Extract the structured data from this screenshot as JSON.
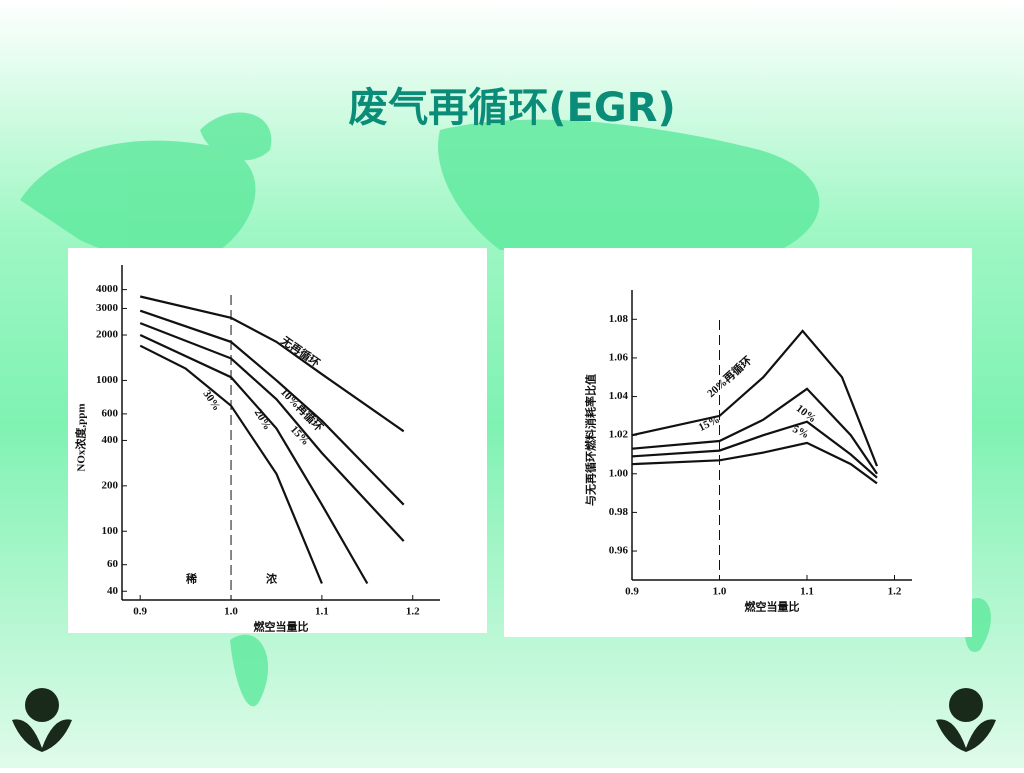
{
  "title": "废气再循环(EGR)",
  "chart_data": [
    {
      "type": "line",
      "log_y": true,
      "ylabel": "NOx浓度,ppm",
      "xlabel": "燃空当量比",
      "xlim": [
        0.88,
        1.23
      ],
      "ylim": [
        35,
        5000
      ],
      "xticks": [
        0.9,
        {
          "value": 1,
          "label": "1.0"
        },
        1.1,
        1.2
      ],
      "yticks": [
        40,
        60,
        100,
        200,
        400,
        600,
        1000,
        2000,
        3000,
        4000
      ],
      "vline": 1,
      "annotations": [
        "稀",
        "浓"
      ],
      "series": [
        {
          "name": "无再循环",
          "color": "#111111",
          "x": [
            0.9,
            1.0,
            1.05,
            1.1,
            1.19
          ],
          "values": [
            3600,
            2600,
            1800,
            1100,
            460
          ]
        },
        {
          "name": "10%再循环",
          "color": "#111111",
          "x": [
            0.9,
            1.0,
            1.05,
            1.1,
            1.19
          ],
          "values": [
            2900,
            1800,
            1000,
            540,
            150
          ]
        },
        {
          "name": "15%",
          "color": "#111111",
          "x": [
            0.9,
            1.0,
            1.05,
            1.1,
            1.19
          ],
          "values": [
            2400,
            1400,
            750,
            330,
            86
          ]
        },
        {
          "name": "20%",
          "color": "#111111",
          "x": [
            0.9,
            1.0,
            1.05,
            1.1,
            1.15
          ],
          "values": [
            2000,
            1050,
            480,
            150,
            45
          ]
        },
        {
          "name": "30%",
          "color": "#111111",
          "x": [
            0.9,
            0.95,
            1.0,
            1.05,
            1.1
          ],
          "values": [
            1700,
            1200,
            680,
            240,
            45
          ]
        }
      ]
    },
    {
      "type": "line",
      "log_y": false,
      "ylabel": "与无再循环燃料消耗率比值",
      "xlabel": "燃空当量比",
      "xlim": [
        0.9,
        1.22
      ],
      "ylim": [
        0.945,
        1.09
      ],
      "xticks": [
        0.9,
        {
          "value": 1,
          "label": "1.0"
        },
        1.1,
        1.2
      ],
      "yticks": [
        0.96,
        0.98,
        {
          "value": 1,
          "label": "1.00"
        },
        1.02,
        1.04,
        1.06,
        1.08
      ],
      "vline": 1,
      "series": [
        {
          "name": "20%再循环",
          "color": "#111111",
          "x": [
            0.9,
            1.0,
            1.05,
            1.095,
            1.14,
            1.18
          ],
          "values": [
            1.02,
            1.03,
            1.05,
            1.074,
            1.05,
            1.004
          ]
        },
        {
          "name": "15%",
          "color": "#111111",
          "x": [
            0.9,
            1.0,
            1.05,
            1.1,
            1.15,
            1.18
          ],
          "values": [
            1.013,
            1.017,
            1.028,
            1.044,
            1.02,
            1.0
          ]
        },
        {
          "name": "10%",
          "color": "#111111",
          "x": [
            0.9,
            1.0,
            1.05,
            1.1,
            1.15,
            1.18
          ],
          "values": [
            1.009,
            1.012,
            1.02,
            1.027,
            1.01,
            0.998
          ]
        },
        {
          "name": "5%",
          "color": "#111111",
          "x": [
            0.9,
            1.0,
            1.05,
            1.1,
            1.15,
            1.18
          ],
          "values": [
            1.005,
            1.007,
            1.011,
            1.016,
            1.005,
            0.995
          ]
        }
      ]
    }
  ]
}
